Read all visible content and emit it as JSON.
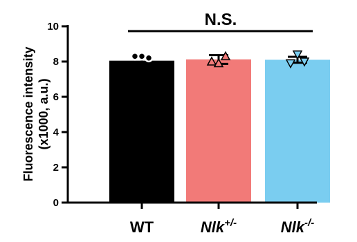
{
  "chart_data": {
    "type": "bar",
    "ylabel_line1": "Fluorescence intensity",
    "ylabel_line2": "(x1000, a.u.)",
    "ylim": [
      0,
      10
    ],
    "yticks": [
      0,
      2,
      4,
      6,
      8,
      10
    ],
    "categories": [
      {
        "base": "WT",
        "sup": ""
      },
      {
        "base": "Nlk",
        "sup": "+/-",
        "italic": true
      },
      {
        "base": "Nlk",
        "sup": "-/-",
        "italic": true
      }
    ],
    "values": [
      8.05,
      8.12,
      8.1
    ],
    "errors": [
      0.2,
      0.25,
      0.17
    ],
    "colors": [
      "#000000",
      "#F27A78",
      "#7ACDF0"
    ],
    "points": [
      {
        "marker": "circle",
        "values": [
          8.3,
          8.3,
          8.2
        ]
      },
      {
        "marker": "triangle-up",
        "values": [
          8.0,
          7.9,
          8.3
        ]
      },
      {
        "marker": "triangle-down",
        "values": [
          7.9,
          8.4,
          8.0
        ]
      }
    ],
    "significance": "N.S."
  }
}
